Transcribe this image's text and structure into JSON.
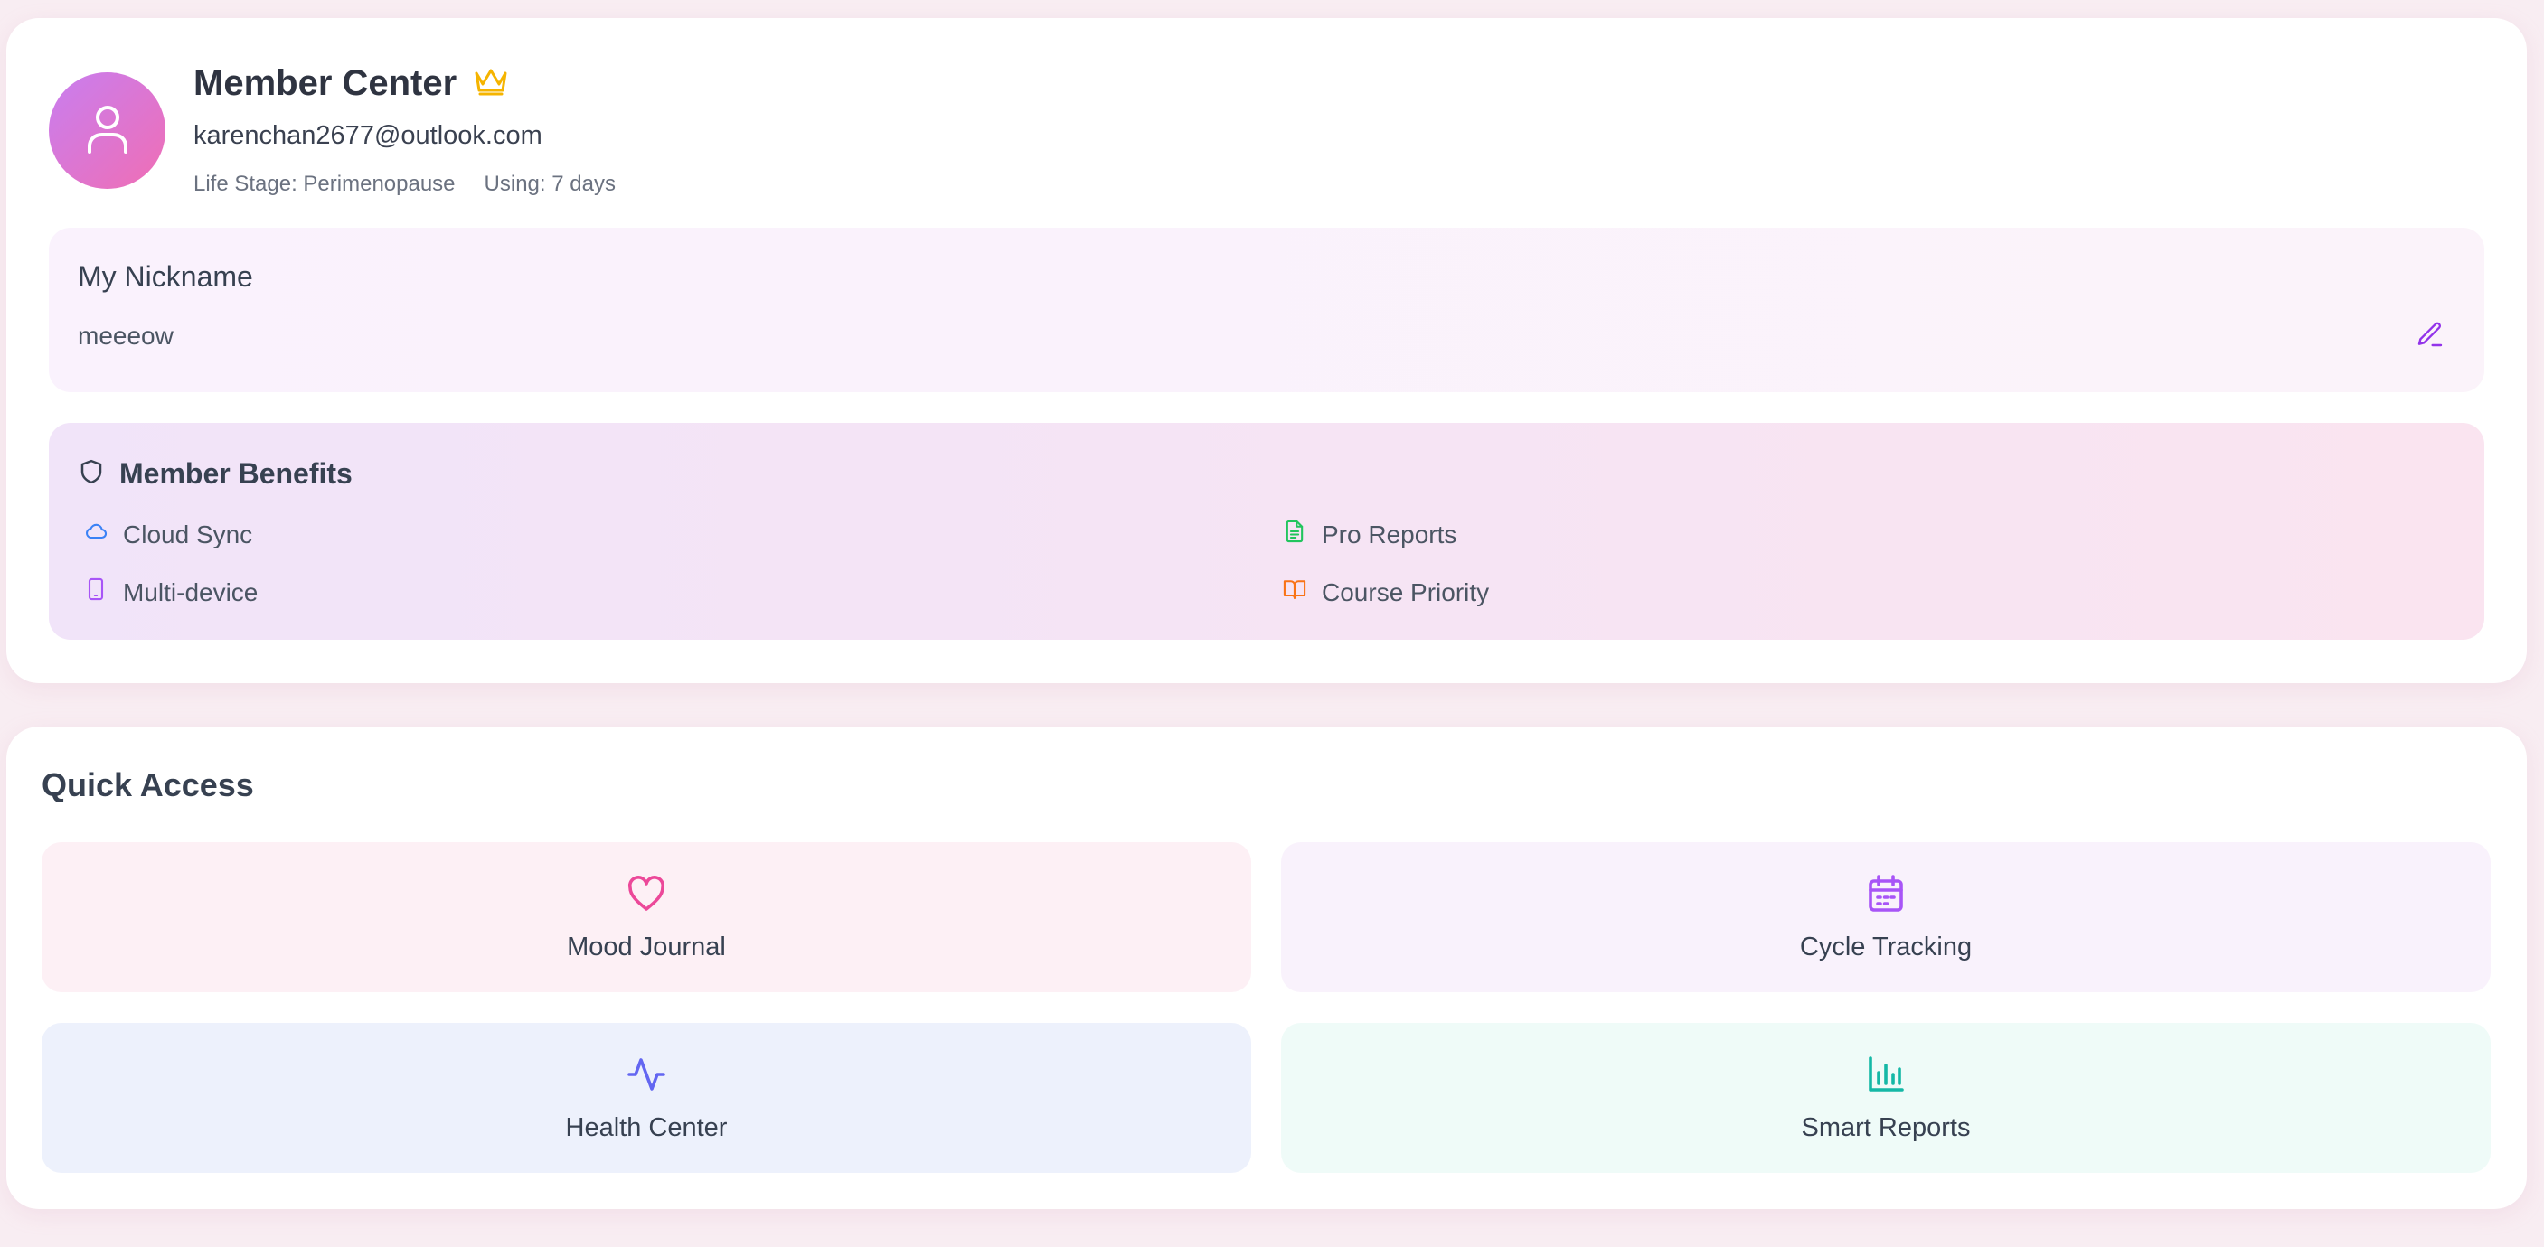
{
  "profile": {
    "title": "Member Center",
    "email": "karenchan2677@outlook.com",
    "life_stage": "Life Stage: Perimenopause",
    "using": "Using: 7 days",
    "avatar_icon": "user-icon",
    "badge_icon": "crown-icon"
  },
  "nickname": {
    "label": "My Nickname",
    "value": "meeeow",
    "edit_icon": "pencil-icon"
  },
  "benefits": {
    "title": "Member Benefits",
    "title_icon": "shield-icon",
    "items": [
      {
        "label": "Cloud Sync",
        "icon": "cloud-icon",
        "color": "#3b82f6"
      },
      {
        "label": "Pro Reports",
        "icon": "file-text-icon",
        "color": "#22c55e"
      },
      {
        "label": "Multi-device",
        "icon": "tablet-icon",
        "color": "#a855f7"
      },
      {
        "label": "Course Priority",
        "icon": "book-open-icon",
        "color": "#f97316"
      }
    ]
  },
  "quick_access": {
    "title": "Quick Access",
    "tiles": [
      {
        "label": "Mood Journal",
        "icon": "heart-icon",
        "color": "#ec4899",
        "background": "#fdf0f5"
      },
      {
        "label": "Cycle Tracking",
        "icon": "calendar-icon",
        "color": "#a855f7",
        "background": "#f9f2fc"
      },
      {
        "label": "Health Center",
        "icon": "activity-icon",
        "color": "#6366f1",
        "background": "#edf1fc"
      },
      {
        "label": "Smart Reports",
        "icon": "bar-chart-icon",
        "color": "#14b8a6",
        "background": "#effbf8"
      }
    ]
  },
  "colors": {
    "accent": "#a855f7",
    "crown": "#f5b400",
    "avatar_gradient_start": "#c87ef0",
    "avatar_gradient_end": "#f06eb4"
  }
}
